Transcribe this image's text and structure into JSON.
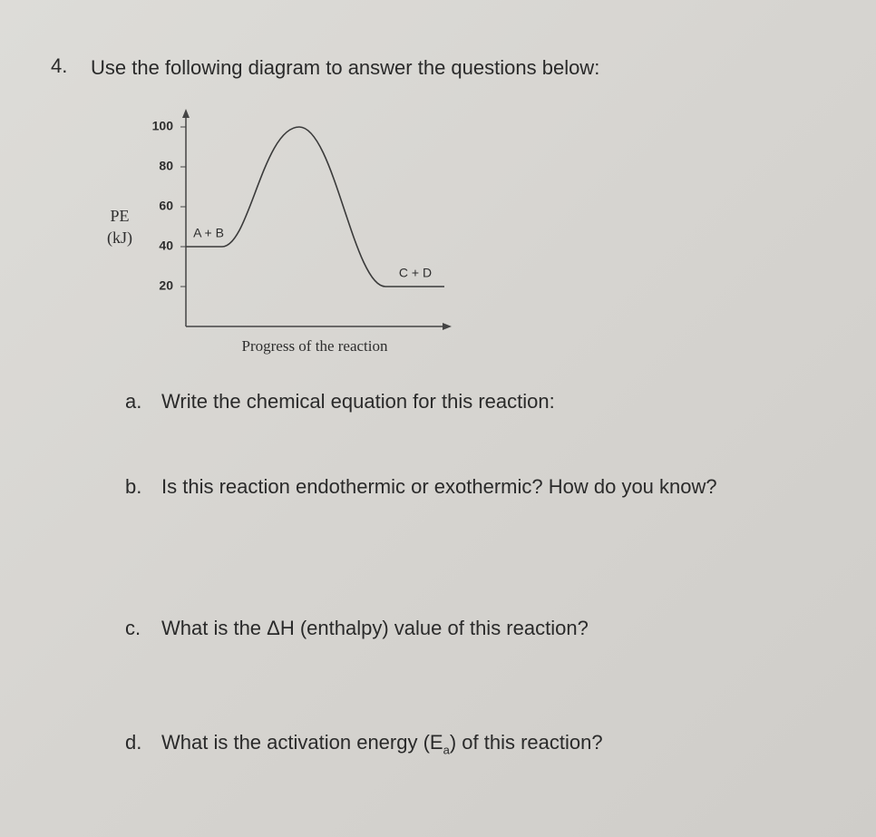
{
  "question": {
    "number": "4.",
    "text": "Use the following diagram to answer the questions below:"
  },
  "chart_data": {
    "type": "energy-profile",
    "ylabel": [
      "PE",
      "(kJ)"
    ],
    "xlabel": "Progress of the reaction",
    "ylim": [
      0,
      105
    ],
    "yticks": [
      20,
      40,
      60,
      80,
      100
    ],
    "reactants": {
      "label": "A + B",
      "value": 40
    },
    "peak": 100,
    "products": {
      "label": "C + D",
      "value": 20
    },
    "color": "#3a3a3a"
  },
  "parts": [
    {
      "letter": "a.",
      "text": "Write the chemical equation for this reaction:"
    },
    {
      "letter": "b.",
      "text": "Is this reaction endothermic or exothermic? How do you know?"
    },
    {
      "letter": "c.",
      "text": "What is the ΔH (enthalpy) value of this reaction?"
    },
    {
      "letter": "d.",
      "text_before": "What is the activation energy (E",
      "subscript": "a",
      "text_after": ") of this reaction?"
    }
  ]
}
